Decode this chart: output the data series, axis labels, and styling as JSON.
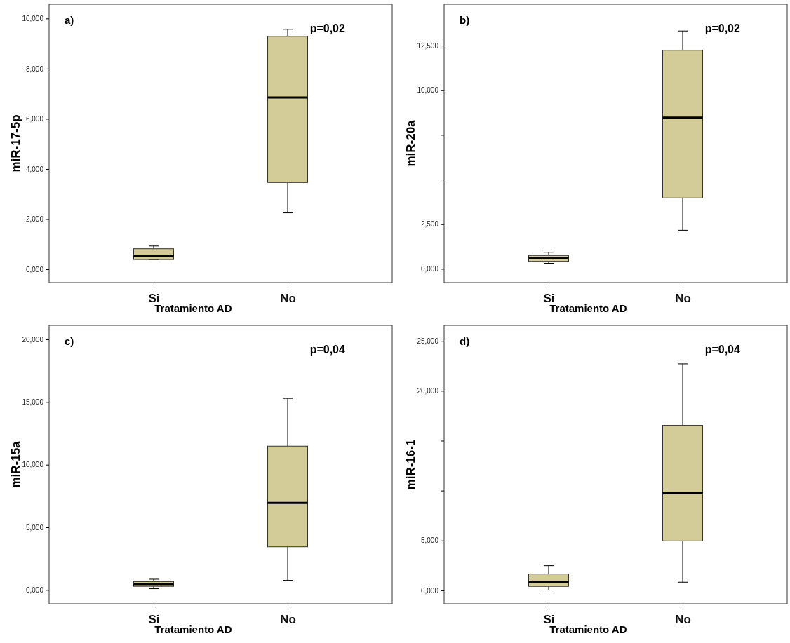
{
  "chart_data": [
    {
      "type": "box",
      "title": "a)",
      "xlabel": "Tratamiento AD",
      "ylabel": "miR-17-5p",
      "categories": [
        "Si",
        "No"
      ],
      "annotations": [
        "p=0,02"
      ],
      "ylim": [
        -0.53,
        10.57
      ],
      "yticks": [
        {
          "value": 0,
          "label": "0,000"
        },
        {
          "value": 2,
          "label": "2,000"
        },
        {
          "value": 4,
          "label": "4,000"
        },
        {
          "value": 6,
          "label": "6,000"
        },
        {
          "value": 8,
          "label": "8,000"
        },
        {
          "value": 10,
          "label": "10,000"
        }
      ],
      "series": [
        {
          "color": "#d4cc98",
          "boxes": [
            {
              "low": 0.39,
              "q1": 0.39,
              "median": 0.54,
              "q3": 0.82,
              "high": 0.93
            },
            {
              "low": 2.25,
              "q1": 3.46,
              "median": 6.85,
              "q3": 9.29,
              "high": 9.57
            }
          ]
        }
      ]
    },
    {
      "type": "box",
      "title": "b)",
      "xlabel": "Tratamiento AD",
      "ylabel": "miR-20a",
      "categories": [
        "Si",
        "No"
      ],
      "annotations": [
        "p=0,02"
      ],
      "ylim": [
        -0.77,
        14.82
      ],
      "yticks": [
        {
          "value": 0,
          "label": "0,000"
        },
        {
          "value": 2.5,
          "label": "2,500"
        },
        {
          "value": 5,
          "label": null
        },
        {
          "value": 7.5,
          "label": null
        },
        {
          "value": 10,
          "label": "10,000"
        },
        {
          "value": 12.5,
          "label": "12,500"
        }
      ],
      "series": [
        {
          "color": "#d4cc98",
          "boxes": [
            {
              "low": 0.31,
              "q1": 0.42,
              "median": 0.59,
              "q3": 0.75,
              "high": 0.93
            },
            {
              "low": 2.16,
              "q1": 3.97,
              "median": 8.47,
              "q3": 12.24,
              "high": 13.32
            }
          ]
        }
      ]
    },
    {
      "type": "box",
      "title": "c)",
      "xlabel": "Tratamiento AD",
      "ylabel": "miR-15a",
      "categories": [
        "Si",
        "No"
      ],
      "annotations": [
        "p=0,04"
      ],
      "ylim": [
        -1.1,
        21.12
      ],
      "yticks": [
        {
          "value": 0,
          "label": "0,000"
        },
        {
          "value": 5,
          "label": "5,000"
        },
        {
          "value": 10,
          "label": "10,000"
        },
        {
          "value": 15,
          "label": "15,000"
        },
        {
          "value": 20,
          "label": "20,000"
        }
      ],
      "series": [
        {
          "color": "#d4cc98",
          "boxes": [
            {
              "low": 0.1,
              "q1": 0.29,
              "median": 0.47,
              "q3": 0.67,
              "high": 0.86
            },
            {
              "low": 0.77,
              "q1": 3.45,
              "median": 6.95,
              "q3": 11.48,
              "high": 15.29
            }
          ]
        }
      ]
    },
    {
      "type": "box",
      "title": "d)",
      "xlabel": "Tratamiento AD",
      "ylabel": "miR-16-1",
      "categories": [
        "Si",
        "No"
      ],
      "annotations": [
        "p=0,04"
      ],
      "ylim": [
        -1.34,
        26.56
      ],
      "yticks": [
        {
          "value": 0,
          "label": "0,000"
        },
        {
          "value": 5,
          "label": "5,000"
        },
        {
          "value": 10,
          "label": null
        },
        {
          "value": 15,
          "label": null
        },
        {
          "value": 20,
          "label": "20,000"
        },
        {
          "value": 25,
          "label": "25,000"
        }
      ],
      "series": [
        {
          "color": "#d4cc98",
          "boxes": [
            {
              "low": 0.03,
              "q1": 0.4,
              "median": 0.82,
              "q3": 1.64,
              "high": 2.48
            },
            {
              "low": 0.82,
              "q1": 4.96,
              "median": 9.75,
              "q3": 16.54,
              "high": 22.7
            }
          ]
        }
      ]
    }
  ]
}
